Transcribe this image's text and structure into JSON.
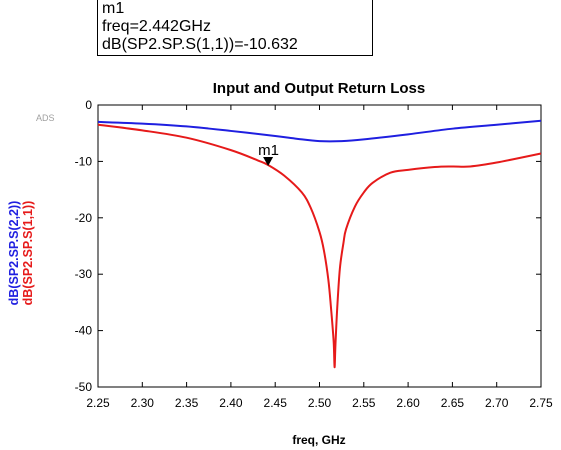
{
  "marker_readout": {
    "name": "m1",
    "freq_text": "freq=2.442GHz",
    "value_text": "dB(SP2.SP.S(1,1))=-10.632"
  },
  "watermark": "ADS",
  "chart_data": {
    "type": "line",
    "title": "Input and Output Return Loss",
    "xlabel": "freq, GHz",
    "ylabels": [
      "dB(SP2.SP.S(2,2))",
      "dB(SP2.SP.S(1,1))"
    ],
    "xlim": [
      2.25,
      2.75
    ],
    "ylim": [
      -50,
      0
    ],
    "xticks": [
      "2.25",
      "2.30",
      "2.35",
      "2.40",
      "2.45",
      "2.50",
      "2.55",
      "2.60",
      "2.65",
      "2.70",
      "2.75"
    ],
    "yticks": [
      "0",
      "-10",
      "-20",
      "-30",
      "-40",
      "-50"
    ],
    "grid": false,
    "series": [
      {
        "name": "dB(SP2.SP.S(2,2))",
        "color": "#1f1fe0",
        "x": [
          2.25,
          2.3,
          2.35,
          2.4,
          2.45,
          2.475,
          2.5,
          2.525,
          2.55,
          2.6,
          2.65,
          2.7,
          2.75
        ],
        "y": [
          -3.0,
          -3.3,
          -3.8,
          -4.6,
          -5.5,
          -6.0,
          -6.4,
          -6.4,
          -6.1,
          -5.2,
          -4.2,
          -3.5,
          -2.8
        ]
      },
      {
        "name": "dB(SP2.SP.S(1,1))",
        "color": "#e61a1a",
        "x": [
          2.25,
          2.3,
          2.35,
          2.4,
          2.43,
          2.442,
          2.46,
          2.48,
          2.49,
          2.5,
          2.505,
          2.51,
          2.513,
          2.516,
          2.517,
          2.518,
          2.52,
          2.523,
          2.527,
          2.53,
          2.54,
          2.55,
          2.56,
          2.58,
          2.6,
          2.63,
          2.65,
          2.67,
          2.7,
          2.75
        ],
        "y": [
          -3.5,
          -4.5,
          -5.8,
          -8.0,
          -9.8,
          -10.632,
          -12.5,
          -15.5,
          -18.2,
          -22.5,
          -25.8,
          -31.0,
          -36.0,
          -42.0,
          -46.5,
          -42.5,
          -36.0,
          -29.0,
          -24.5,
          -22.0,
          -18.0,
          -15.5,
          -13.8,
          -12.0,
          -11.5,
          -11.0,
          -10.9,
          -10.9,
          -10.2,
          -8.6
        ]
      }
    ],
    "markers": [
      {
        "label": "m1",
        "series": "dB(SP2.SP.S(1,1))",
        "x": 2.442,
        "y": -10.632
      }
    ]
  }
}
